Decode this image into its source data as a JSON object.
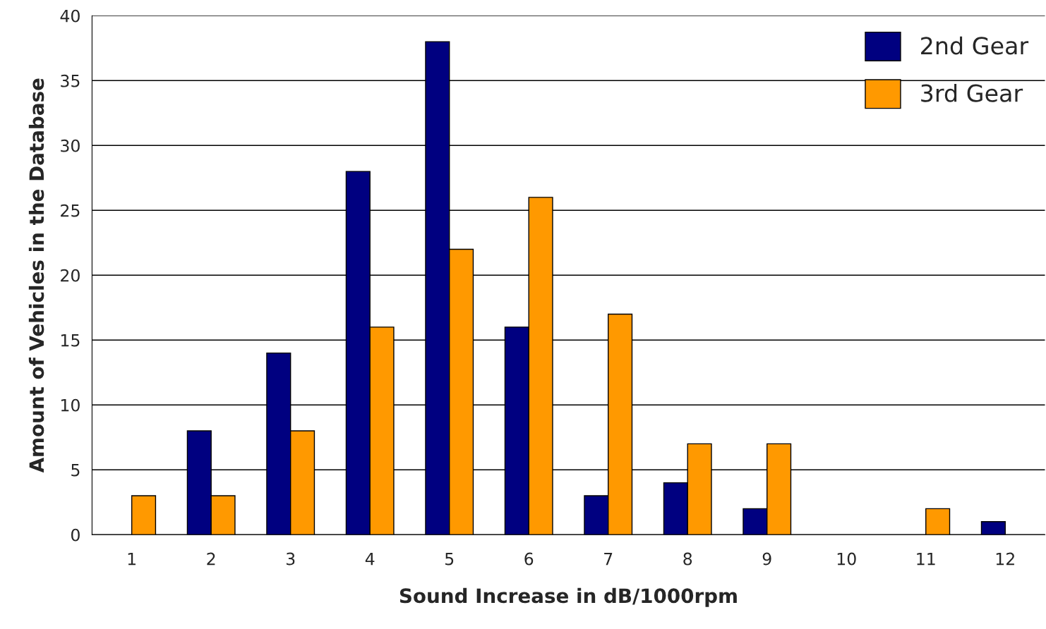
{
  "chart_data": {
    "type": "bar",
    "xlabel": "Sound Increase in dB/1000rpm",
    "ylabel": "Amount of Vehicles in the Database",
    "categories": [
      "1",
      "2",
      "3",
      "4",
      "5",
      "6",
      "7",
      "8",
      "9",
      "10",
      "11",
      "12"
    ],
    "series": [
      {
        "name": "2nd Gear",
        "color": "#000080",
        "values": [
          0,
          8,
          14,
          28,
          38,
          16,
          3,
          4,
          2,
          0,
          0,
          1
        ]
      },
      {
        "name": "3rd Gear",
        "color": "#ff9900",
        "values": [
          3,
          3,
          8,
          16,
          22,
          26,
          17,
          7,
          7,
          0,
          2,
          0
        ]
      }
    ],
    "ylim": [
      0,
      40
    ],
    "yticks": [
      0,
      5,
      10,
      15,
      20,
      25,
      30,
      35,
      40
    ],
    "grid": "y",
    "legend": "top right"
  }
}
